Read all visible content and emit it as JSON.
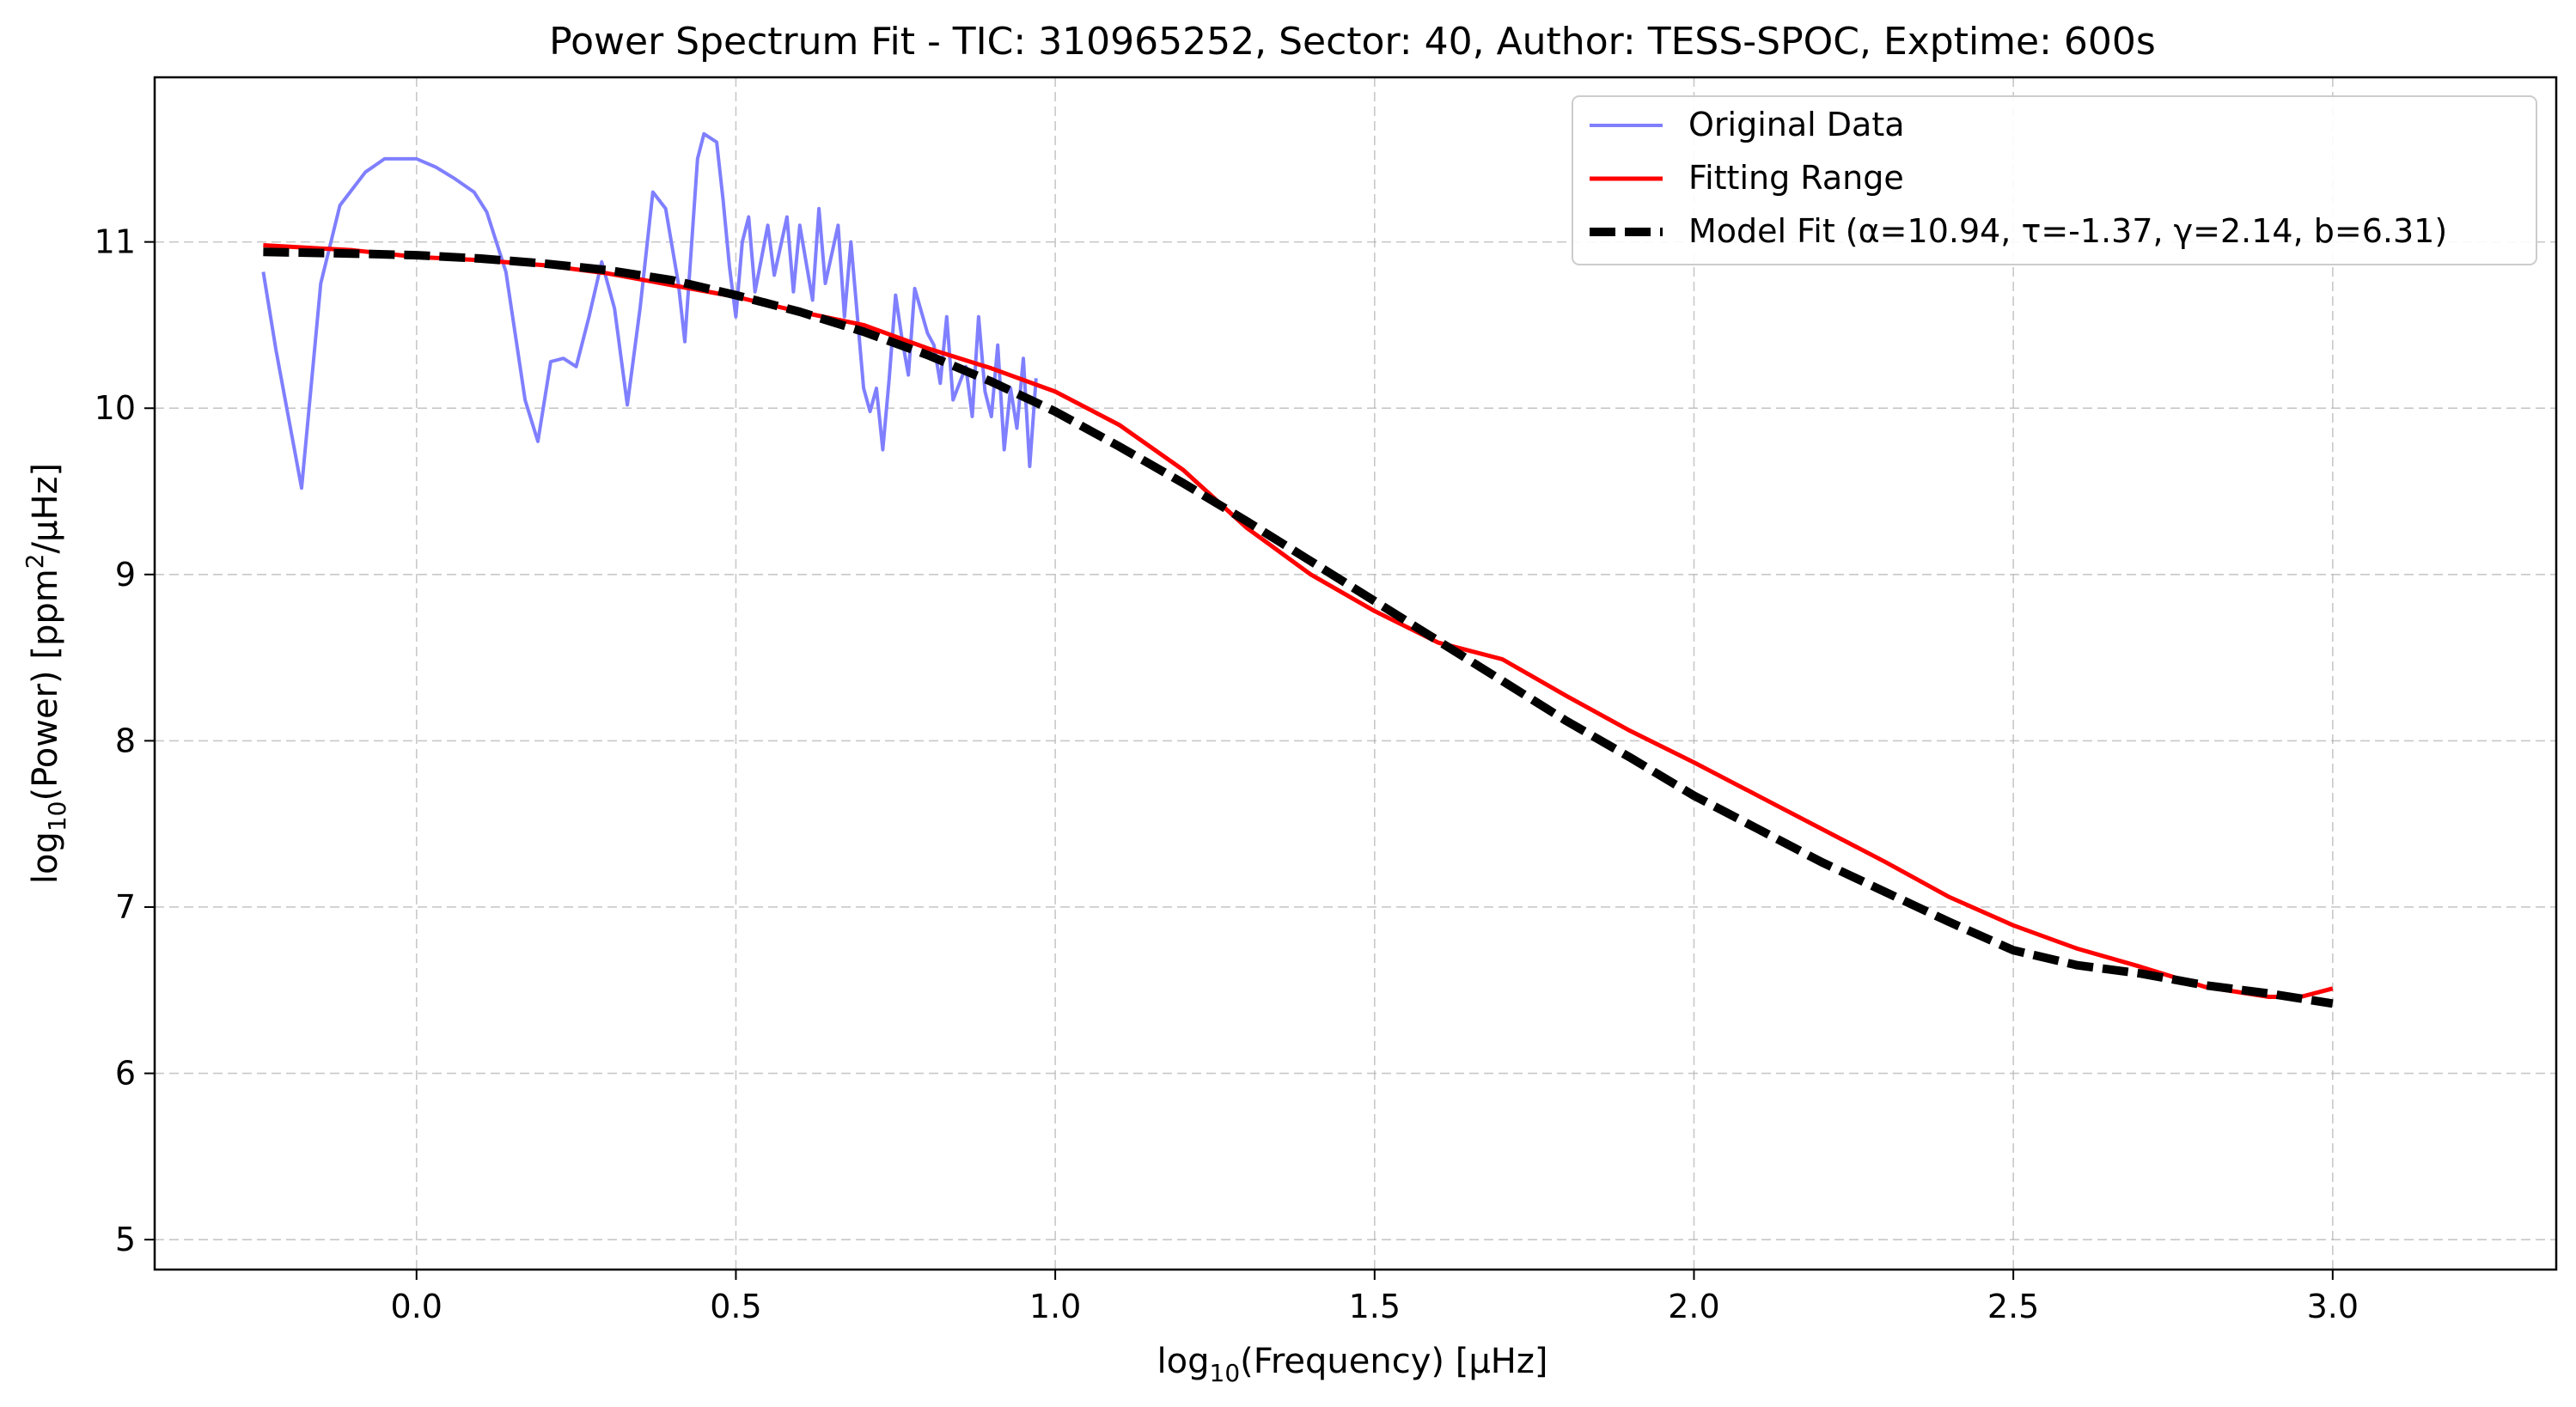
{
  "chart_data": {
    "type": "line",
    "title": "Power Spectrum Fit - TIC: 310965252, Sector: 40, Author: TESS-SPOC, Exptime: 600s",
    "xlabel": "(Frequency) [μHz]",
    "ylabel": "(Power) [ppm",
    "ylabel_tail": "/μHz]",
    "log_prefix": "log",
    "log_sub": "10",
    "ylabel_sup": "2",
    "xlim": [
      -0.41,
      3.35
    ],
    "ylim": [
      4.82,
      11.99
    ],
    "x_ticks": [
      0.0,
      0.5,
      1.0,
      1.5,
      2.0,
      2.5,
      3.0
    ],
    "x_tick_labels": [
      "0.0",
      "0.5",
      "1.0",
      "1.5",
      "2.0",
      "2.5",
      "3.0"
    ],
    "y_ticks": [
      5,
      6,
      7,
      8,
      9,
      10,
      11
    ],
    "y_tick_labels": [
      "5",
      "6",
      "7",
      "8",
      "9",
      "10",
      "11"
    ],
    "grid": true,
    "legend_position": "top-right",
    "series": [
      {
        "name": "Original Data",
        "color": "#7f7fff",
        "style": "solid",
        "x": [
          -0.24,
          -0.22,
          -0.18,
          -0.15,
          -0.12,
          -0.08,
          -0.05,
          -0.02,
          0.0,
          0.03,
          0.06,
          0.09,
          0.11,
          0.14,
          0.17,
          0.19,
          0.21,
          0.23,
          0.25,
          0.27,
          0.29,
          0.31,
          0.33,
          0.35,
          0.37,
          0.39,
          0.41,
          0.42,
          0.44,
          0.45,
          0.47,
          0.48,
          0.49,
          0.5,
          0.51,
          0.52,
          0.53,
          0.55,
          0.56,
          0.58,
          0.59,
          0.6,
          0.62,
          0.63,
          0.64,
          0.66,
          0.67,
          0.68,
          0.7,
          0.71,
          0.72,
          0.73,
          0.74,
          0.75,
          0.76,
          0.77,
          0.78,
          0.8,
          0.81,
          0.82,
          0.83,
          0.84,
          0.86,
          0.87,
          0.88,
          0.89,
          0.9,
          0.91,
          0.92,
          0.93,
          0.94,
          0.95,
          0.96,
          0.97
        ],
        "y": [
          10.82,
          10.35,
          9.52,
          10.75,
          11.22,
          11.42,
          11.5,
          11.5,
          11.5,
          11.45,
          11.38,
          11.3,
          11.18,
          10.82,
          10.05,
          9.8,
          10.28,
          10.3,
          10.25,
          10.55,
          10.88,
          10.6,
          10.02,
          10.6,
          11.3,
          11.2,
          10.75,
          10.4,
          11.5,
          11.65,
          11.6,
          11.25,
          10.85,
          10.55,
          11.0,
          11.15,
          10.7,
          11.1,
          10.8,
          11.15,
          10.7,
          11.1,
          10.65,
          11.2,
          10.75,
          11.1,
          10.55,
          11.0,
          10.12,
          9.98,
          10.12,
          9.75,
          10.18,
          10.68,
          10.42,
          10.2,
          10.72,
          10.45,
          10.38,
          10.15,
          10.55,
          10.05,
          10.25,
          9.95,
          10.55,
          10.1,
          9.95,
          10.38,
          9.75,
          10.12,
          9.88,
          10.3,
          9.65,
          10.18
        ]
      },
      {
        "name": "Fitting Range",
        "color": "#ff0000",
        "style": "solid",
        "x": [
          -0.24,
          -0.1,
          0.0,
          0.1,
          0.2,
          0.3,
          0.4,
          0.5,
          0.6,
          0.7,
          0.8,
          0.9,
          1.0,
          1.1,
          1.2,
          1.3,
          1.4,
          1.5,
          1.6,
          1.7,
          1.8,
          1.9,
          2.0,
          2.1,
          2.2,
          2.3,
          2.4,
          2.5,
          2.6,
          2.7,
          2.8,
          2.9,
          2.95,
          3.0
        ],
        "y": [
          10.98,
          10.95,
          10.91,
          10.89,
          10.86,
          10.81,
          10.74,
          10.67,
          10.58,
          10.5,
          10.36,
          10.24,
          10.1,
          9.9,
          9.63,
          9.28,
          9.0,
          8.78,
          8.59,
          8.49,
          8.27,
          8.06,
          7.87,
          7.67,
          7.47,
          7.27,
          7.06,
          6.89,
          6.75,
          6.64,
          6.52,
          6.46,
          6.46,
          6.51
        ]
      },
      {
        "name": "Model Fit (α=10.94, τ=-1.37, γ=2.14, b=6.31)",
        "color": "#000000",
        "style": "dashed",
        "x": [
          -0.24,
          -0.1,
          0.0,
          0.1,
          0.2,
          0.3,
          0.4,
          0.5,
          0.6,
          0.7,
          0.8,
          0.9,
          1.0,
          1.1,
          1.2,
          1.3,
          1.4,
          1.5,
          1.6,
          1.7,
          1.8,
          1.9,
          2.0,
          2.1,
          2.2,
          2.3,
          2.4,
          2.5,
          2.6,
          2.7,
          2.8,
          2.9,
          3.0
        ],
        "y": [
          10.94,
          10.93,
          10.92,
          10.9,
          10.87,
          10.83,
          10.77,
          10.68,
          10.58,
          10.46,
          10.32,
          10.16,
          9.98,
          9.77,
          9.55,
          9.32,
          9.08,
          8.84,
          8.6,
          8.36,
          8.12,
          7.9,
          7.67,
          7.47,
          7.27,
          7.09,
          6.91,
          6.74,
          6.65,
          6.6,
          6.53,
          6.48,
          6.42
        ]
      }
    ]
  }
}
